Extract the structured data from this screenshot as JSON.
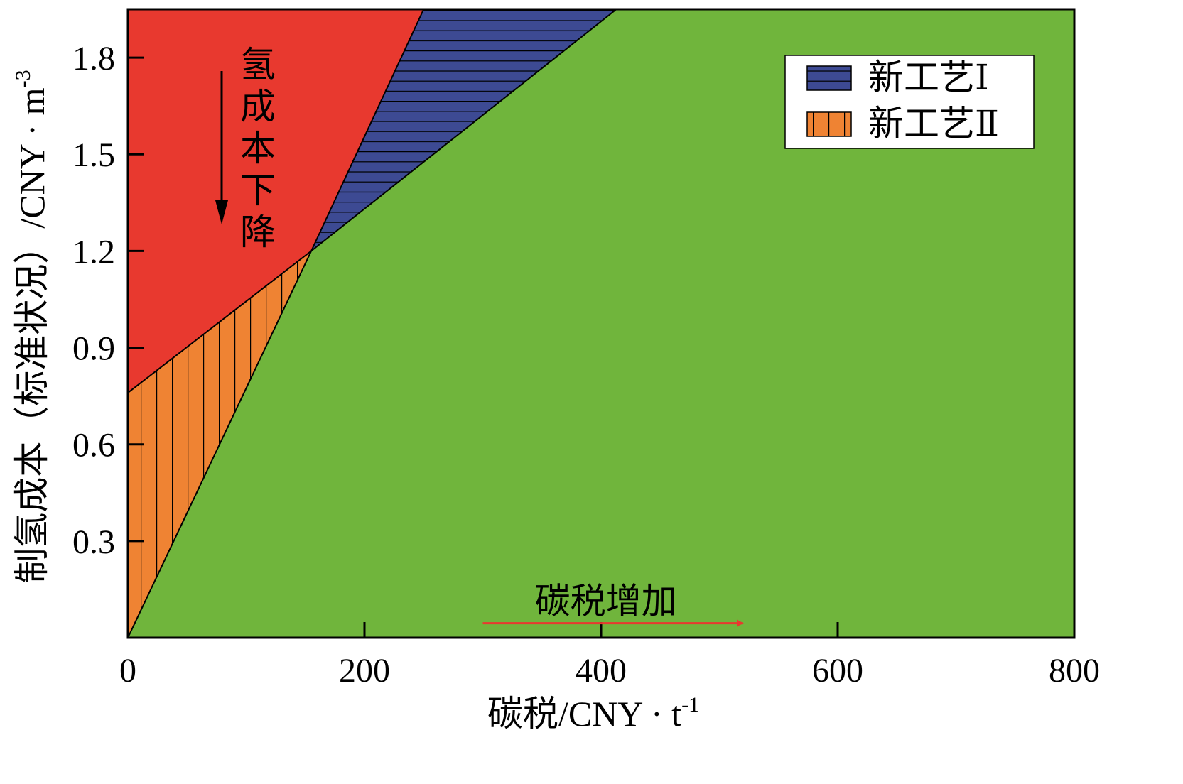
{
  "chart_data": {
    "type": "area",
    "title": "",
    "xlabel": "碳税/CNY · t",
    "xlabel_sup": "-1",
    "ylabel": "制氢成本（标准状况）/CNY · m",
    "ylabel_sup": "-3",
    "xlim": [
      0,
      800
    ],
    "ylim": [
      0,
      1.95
    ],
    "xticks": [
      0,
      200,
      400,
      600,
      800
    ],
    "xtick_labels": [
      "0",
      "200",
      "400",
      "600",
      "800"
    ],
    "yticks": [
      0.3,
      0.6,
      0.9,
      1.2,
      1.5,
      1.8
    ],
    "ytick_labels": [
      "0.3",
      "0.6",
      "0.9",
      "1.2",
      "1.5",
      "1.8"
    ],
    "boundaries": {
      "green_lower": [
        [
          0,
          0
        ],
        [
          155,
          1.2
        ],
        [
          413,
          1.95
        ]
      ],
      "red_boundary": [
        [
          0,
          0.76
        ],
        [
          155,
          1.2
        ],
        [
          250,
          1.95
        ]
      ]
    },
    "regions": [
      {
        "name": "red-region",
        "color": "#e8392f",
        "polygon": [
          [
            0,
            0.76
          ],
          [
            155,
            1.2
          ],
          [
            250,
            1.95
          ],
          [
            0,
            1.95
          ]
        ]
      },
      {
        "name": "new-process-I",
        "color": "#3d4a93",
        "hatch": "horizontal",
        "polygon": [
          [
            155,
            1.2
          ],
          [
            250,
            1.95
          ],
          [
            413,
            1.95
          ]
        ]
      },
      {
        "name": "new-process-II",
        "color": "#ef8333",
        "hatch": "vertical",
        "polygon": [
          [
            0,
            0
          ],
          [
            155,
            1.2
          ],
          [
            0,
            0.76
          ]
        ]
      },
      {
        "name": "green-region",
        "color": "#70b53c",
        "polygon": [
          [
            0,
            0
          ],
          [
            155,
            1.2
          ],
          [
            413,
            1.95
          ],
          [
            800,
            1.95
          ],
          [
            800,
            0
          ]
        ]
      }
    ],
    "legend": {
      "position": "top-right",
      "entries": [
        {
          "label": "新工艺Ⅰ",
          "color": "#3d4a93",
          "hatch": "horizontal"
        },
        {
          "label": "新工艺Ⅱ",
          "color": "#ef8333",
          "hatch": "vertical"
        }
      ]
    },
    "annotations": [
      {
        "name": "hydrogen-cost-decrease",
        "text": "氢成本下降",
        "characters": [
          "氢",
          "成",
          "本",
          "下",
          "降"
        ],
        "orientation": "vertical",
        "arrow": "down",
        "arrow_color": "#000000"
      },
      {
        "name": "carbon-tax-increase",
        "text": "碳税增加",
        "orientation": "horizontal",
        "arrow": "right",
        "arrow_color": "#e8392f",
        "x": 300,
        "y": 0.045,
        "x_end": 520
      }
    ]
  }
}
